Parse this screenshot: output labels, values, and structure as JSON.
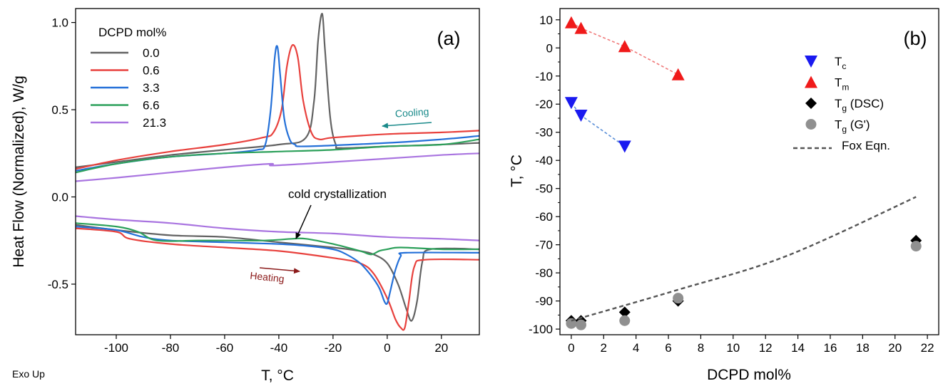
{
  "footer_note": "Exo Up",
  "chart_data": [
    {
      "type": "line",
      "panel_label": "(a)",
      "xlabel": "T, °C",
      "ylabel": "Heat Flow (Normalized), W/g",
      "xlim": [
        -115,
        34
      ],
      "ylim": [
        -0.79,
        1.08
      ],
      "xticks": [
        -100,
        -80,
        -60,
        -40,
        -20,
        0,
        20
      ],
      "xtick_labels": [
        "-100",
        "-80",
        "-60",
        "-40",
        "-20",
        "0",
        "20"
      ],
      "yticks": [
        1.0,
        0.5,
        0.0,
        -0.5
      ],
      "ytick_labels": [
        "1.0",
        "0.5",
        "0.0",
        "-0.5"
      ],
      "grid": false,
      "legend_title": "DCPD mol%",
      "legend_position": "top-left",
      "annotations": {
        "cooling": "Cooling",
        "heating": "Heating",
        "cold_crystallization": "cold crystallization"
      },
      "series": [
        {
          "name": "0.0",
          "color": "#636363",
          "cooling_x": [
            -115,
            -100,
            -80,
            -60,
            -40,
            -30,
            -27,
            -25.5,
            -24,
            -23,
            -21,
            -19,
            -17,
            0,
            20,
            34
          ],
          "cooling_y": [
            0.17,
            0.2,
            0.24,
            0.27,
            0.3,
            0.34,
            0.55,
            0.9,
            1.05,
            0.85,
            0.45,
            0.3,
            0.28,
            0.29,
            0.3,
            0.31
          ],
          "heating_x": [
            -115,
            -100,
            -80,
            -60,
            -40,
            -20,
            -10,
            -5,
            0,
            4,
            7,
            9,
            11,
            13,
            16,
            34
          ],
          "heating_y": [
            -0.16,
            -0.19,
            -0.22,
            -0.23,
            -0.26,
            -0.29,
            -0.31,
            -0.33,
            -0.38,
            -0.5,
            -0.64,
            -0.71,
            -0.6,
            -0.37,
            -0.3,
            -0.3
          ]
        },
        {
          "name": "0.6",
          "color": "#e8413d",
          "cooling_x": [
            -115,
            -100,
            -80,
            -60,
            -46,
            -42,
            -39,
            -37,
            -35,
            -33,
            -31,
            -28,
            -25,
            -20,
            0,
            20,
            34
          ],
          "cooling_y": [
            0.16,
            0.21,
            0.26,
            0.3,
            0.34,
            0.37,
            0.5,
            0.75,
            0.87,
            0.8,
            0.55,
            0.37,
            0.33,
            0.34,
            0.36,
            0.37,
            0.38
          ],
          "heating_x": [
            -115,
            -100,
            -95,
            -80,
            -60,
            -40,
            -20,
            -10,
            -5,
            0,
            3,
            5,
            6.5,
            8,
            10,
            14,
            34
          ],
          "heating_y": [
            -0.18,
            -0.2,
            -0.24,
            -0.27,
            -0.29,
            -0.31,
            -0.35,
            -0.38,
            -0.44,
            -0.58,
            -0.7,
            -0.75,
            -0.75,
            -0.6,
            -0.4,
            -0.36,
            -0.36
          ]
        },
        {
          "name": "3.3",
          "color": "#2470d8",
          "cooling_x": [
            -115,
            -100,
            -80,
            -60,
            -48,
            -45,
            -43,
            -41.5,
            -40.5,
            -39.5,
            -38,
            -36,
            -34,
            -30,
            0,
            20,
            34
          ],
          "cooling_y": [
            0.15,
            0.19,
            0.23,
            0.25,
            0.27,
            0.3,
            0.5,
            0.8,
            0.86,
            0.7,
            0.45,
            0.33,
            0.3,
            0.29,
            0.31,
            0.33,
            0.35
          ],
          "heating_x": [
            -115,
            -100,
            -90,
            -80,
            -60,
            -40,
            -30,
            -20,
            -15,
            -10,
            -6,
            -3,
            -1,
            0,
            1,
            3,
            5,
            7,
            34
          ],
          "heating_y": [
            -0.17,
            -0.19,
            -0.23,
            -0.25,
            -0.26,
            -0.27,
            -0.28,
            -0.3,
            -0.33,
            -0.38,
            -0.45,
            -0.52,
            -0.6,
            -0.61,
            -0.55,
            -0.42,
            -0.34,
            -0.32,
            -0.32
          ]
        },
        {
          "name": "6.6",
          "color": "#2ca05a",
          "cooling_x": [
            -115,
            -100,
            -80,
            -60,
            -40,
            -20,
            0,
            20,
            34
          ],
          "cooling_y": [
            0.14,
            0.19,
            0.23,
            0.25,
            0.26,
            0.27,
            0.29,
            0.3,
            0.33
          ],
          "heating_x": [
            -115,
            -100,
            -92,
            -85,
            -70,
            -60,
            -45,
            -35,
            -30,
            -20,
            -10,
            -6,
            -3,
            0,
            5,
            20,
            34
          ],
          "heating_y": [
            -0.15,
            -0.17,
            -0.2,
            -0.25,
            -0.25,
            -0.25,
            -0.25,
            -0.24,
            -0.24,
            -0.27,
            -0.31,
            -0.33,
            -0.31,
            -0.3,
            -0.29,
            -0.3,
            -0.3
          ]
        },
        {
          "name": "21.3",
          "color": "#a974e0",
          "cooling_x": [
            -115,
            -100,
            -80,
            -60,
            -43,
            -42,
            -20,
            0,
            20,
            34
          ],
          "cooling_y": [
            0.09,
            0.11,
            0.14,
            0.17,
            0.19,
            0.18,
            0.2,
            0.22,
            0.24,
            0.25
          ],
          "heating_x": [
            -115,
            -100,
            -80,
            -60,
            -40,
            -20,
            0,
            20,
            34
          ],
          "heating_y": [
            -0.11,
            -0.13,
            -0.15,
            -0.18,
            -0.2,
            -0.21,
            -0.23,
            -0.24,
            -0.25
          ]
        }
      ]
    },
    {
      "type": "scatter",
      "panel_label": "(b)",
      "xlabel": "DCPD mol%",
      "ylabel": "T, °C",
      "xlim": [
        -0.7,
        22.7
      ],
      "ylim": [
        -102,
        14
      ],
      "xticks": [
        0,
        2,
        4,
        6,
        8,
        10,
        12,
        14,
        16,
        18,
        20,
        22
      ],
      "xtick_labels": [
        "0",
        "2",
        "4",
        "6",
        "8",
        "10",
        "12",
        "14",
        "16",
        "18",
        "20",
        "22"
      ],
      "yticks": [
        10,
        0,
        -10,
        -20,
        -30,
        -40,
        -50,
        -60,
        -70,
        -80,
        -90,
        -100
      ],
      "ytick_labels": [
        "10",
        "0",
        "-10",
        "-20",
        "-30",
        "-40",
        "-50",
        "-60",
        "-70",
        "-80",
        "-90",
        "-100"
      ],
      "grid": false,
      "legend_position": "top-right",
      "series": [
        {
          "name": "T",
          "sub": "c",
          "suffix": "",
          "marker": "triangle-down",
          "color": "#1a1af0",
          "x": [
            0,
            0.6,
            3.3
          ],
          "y": [
            -19.5,
            -24,
            -35
          ],
          "trend": true,
          "trend_color": "#5b8fd8"
        },
        {
          "name": "T",
          "sub": "m",
          "suffix": "",
          "marker": "triangle-up",
          "color": "#f01a1a",
          "x": [
            0,
            0.6,
            3.3,
            6.6
          ],
          "y": [
            9,
            7,
            0.5,
            -9.5
          ],
          "trend": true,
          "trend_color": "#f07a7a"
        },
        {
          "name": "T",
          "sub": "g",
          "suffix": " (DSC)",
          "marker": "diamond",
          "color": "#000000",
          "x": [
            0,
            0.6,
            3.3,
            6.6,
            21.3
          ],
          "y": [
            -97,
            -97,
            -94,
            -90,
            -68.5
          ],
          "trend": false
        },
        {
          "name": "T",
          "sub": "g",
          "suffix": " (G')",
          "marker": "circle",
          "color": "#909090",
          "x": [
            0,
            0.6,
            3.3,
            6.6,
            21.3
          ],
          "y": [
            -98,
            -98.5,
            -97,
            -89,
            -70.5
          ],
          "trend": false
        },
        {
          "name": "Fox Eqn.",
          "sub": "",
          "suffix": "",
          "marker": "dash",
          "color": "#555555",
          "x": [
            0,
            6.6,
            13.3,
            21.3
          ],
          "y": [
            -97,
            -86,
            -74,
            -53
          ],
          "trend": false
        }
      ]
    }
  ]
}
